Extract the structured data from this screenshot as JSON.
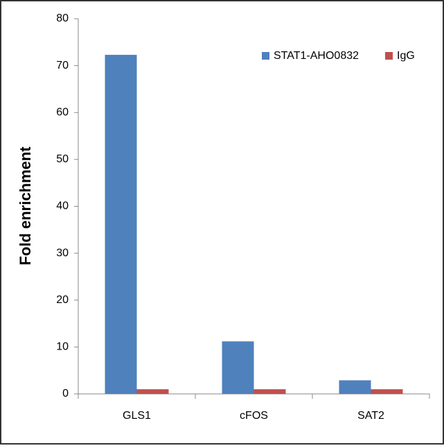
{
  "chart_data": {
    "type": "bar",
    "y_label": "Fold enrichment",
    "categories": [
      "GLS1",
      "cFOS",
      "SAT2"
    ],
    "series": [
      {
        "name": "STAT1-AHO0832",
        "color": "#4f81bd",
        "values": [
          72.3,
          11.2,
          2.9
        ]
      },
      {
        "name": "IgG",
        "color": "#c0504d",
        "values": [
          1,
          1,
          1
        ]
      }
    ],
    "ylim": [
      0,
      80
    ],
    "yticks": [
      0,
      10,
      20,
      30,
      40,
      50,
      60,
      70,
      80
    ],
    "grid": false,
    "legend": "top-right"
  }
}
